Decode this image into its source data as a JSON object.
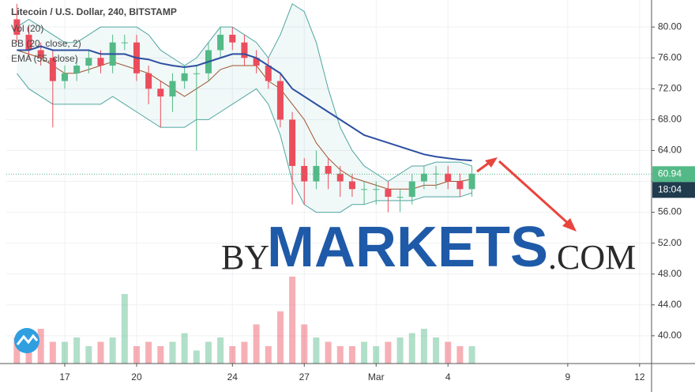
{
  "chart_data": {
    "type": "candlestick",
    "title": "Litecoin / U.S. Dollar, 240, BITSTAMP",
    "indicators": [
      "Vol (20)",
      "BB (20, close, 2)",
      "EMA (55, close)"
    ],
    "watermark": [
      "BY",
      "MARKETS",
      ".COM"
    ],
    "x": [
      -2,
      -1.5,
      -1,
      -0.5,
      0,
      0.5,
      1,
      1.5,
      2,
      2.5,
      3,
      3.5,
      4,
      4.5,
      5,
      5.5,
      6,
      6.5,
      7,
      7.5,
      8,
      8.5,
      9,
      9.5,
      10,
      10.5,
      11,
      11.5,
      12,
      12.5,
      13,
      13.5,
      14,
      14.5,
      15,
      15.5,
      16,
      16.5,
      17
    ],
    "open": [
      81,
      79,
      77,
      76,
      73,
      74,
      75,
      76,
      75,
      78,
      78,
      74,
      72,
      71,
      73,
      74,
      74,
      77,
      79,
      78,
      76,
      75,
      73,
      68,
      62,
      60,
      62,
      61,
      60,
      59,
      59,
      59,
      58,
      58,
      60,
      61,
      61,
      60,
      59
    ],
    "close": [
      79,
      77,
      76,
      73,
      74,
      75,
      76,
      75,
      78,
      78,
      74,
      72,
      71,
      73,
      74,
      74,
      77,
      79,
      78,
      76,
      75,
      73,
      68,
      62,
      60,
      62,
      61,
      60,
      59,
      59,
      59,
      58,
      58,
      60,
      61,
      61,
      60,
      59,
      61
    ],
    "high": [
      83,
      80,
      78,
      77,
      75,
      76,
      77,
      77,
      79,
      79,
      79,
      75,
      73,
      74,
      75,
      75,
      78,
      80,
      80,
      79,
      77,
      76,
      74,
      69,
      63,
      64,
      63,
      62,
      61,
      60,
      60,
      60,
      59,
      61,
      62,
      62,
      62,
      61,
      62
    ],
    "low": [
      78,
      76,
      75,
      67,
      72,
      73,
      74,
      74,
      74,
      77,
      73,
      70,
      67,
      69,
      72,
      64,
      73,
      76,
      77,
      75,
      74,
      72,
      67,
      57,
      57,
      59,
      59,
      58,
      58,
      57,
      57,
      56,
      56,
      57,
      59,
      59,
      59,
      58,
      58
    ],
    "volume": [
      30,
      20,
      40,
      25,
      25,
      30,
      20,
      25,
      30,
      80,
      20,
      25,
      20,
      25,
      35,
      15,
      25,
      30,
      20,
      25,
      45,
      20,
      60,
      100,
      45,
      30,
      25,
      20,
      20,
      25,
      20,
      25,
      30,
      35,
      40,
      30,
      25,
      20,
      20
    ],
    "ema": [
      77,
      77,
      77.5,
      77,
      77,
      77,
      77,
      76.5,
      76.5,
      76.5,
      76,
      75.8,
      75.3,
      75,
      74.8,
      75,
      75.5,
      76,
      76.5,
      76.5,
      76,
      75,
      74,
      72,
      71,
      70,
      69,
      68,
      67,
      66,
      65.5,
      65,
      64.5,
      64,
      63.5,
      63.2,
      63,
      62.8,
      62.7
    ],
    "bb_upper": [
      80,
      81,
      80,
      79,
      78,
      78,
      79,
      80,
      80,
      80,
      80,
      79,
      77,
      76,
      75,
      76,
      78,
      80,
      80,
      79,
      78,
      76,
      79,
      83,
      82,
      78,
      72,
      67,
      64,
      62,
      61,
      60,
      61,
      62,
      62,
      62.5,
      62.5,
      62.5,
      62
    ],
    "bb_middle": [
      77,
      76.5,
      76,
      75,
      74,
      74,
      74.5,
      75,
      75.5,
      75,
      74.5,
      74,
      73,
      72,
      71,
      72,
      73,
      74.5,
      75,
      75,
      75,
      73,
      72,
      70,
      68,
      65,
      63,
      61.5,
      60.5,
      60,
      59.5,
      59,
      59,
      59,
      59.5,
      59.5,
      60,
      60,
      60.3
    ],
    "bb_lower": [
      74,
      72,
      71,
      70,
      70,
      70,
      70,
      70,
      71,
      70,
      69,
      68,
      67,
      67,
      67,
      68,
      68,
      69,
      70,
      71,
      72,
      70,
      66,
      60,
      57,
      56,
      56,
      56,
      57,
      57,
      57.5,
      57.5,
      57.5,
      57.5,
      58,
      58,
      58,
      58,
      58.5
    ],
    "colors": {
      "up": "#53b987",
      "down": "#eb4d5c",
      "ema": "#2d4fa0",
      "bb": "#4fa6a0",
      "bb_middle": "#a0522d"
    },
    "last_price": {
      "value": 60.94,
      "label": "60.94"
    },
    "countdown": "18:04",
    "ylim": [
      36.4,
      83.5
    ],
    "yticks": [
      {
        "value": 40,
        "label": "40.00"
      },
      {
        "value": 44,
        "label": "44.00"
      },
      {
        "value": 48,
        "label": "48.00"
      },
      {
        "value": 52,
        "label": "52.00"
      },
      {
        "value": 56,
        "label": "56.00"
      },
      {
        "value": 60,
        "label": "60.00"
      },
      {
        "value": 64,
        "label": "64.00"
      },
      {
        "value": 68,
        "label": "68.00"
      },
      {
        "value": 72,
        "label": "72.00"
      },
      {
        "value": 76,
        "label": "76.00"
      },
      {
        "value": 80,
        "label": "80.00"
      }
    ],
    "xlim": [
      -2.44,
      24.5
    ],
    "xticks": [
      {
        "value": 0,
        "label": "17"
      },
      {
        "value": 3,
        "label": "20"
      },
      {
        "value": 7,
        "label": "24"
      },
      {
        "value": 10,
        "label": "27"
      },
      {
        "value": 13,
        "label": "Mar"
      },
      {
        "value": 16,
        "label": "4"
      },
      {
        "value": 21,
        "label": "9"
      },
      {
        "value": 24,
        "label": "12"
      }
    ],
    "grid": true
  }
}
